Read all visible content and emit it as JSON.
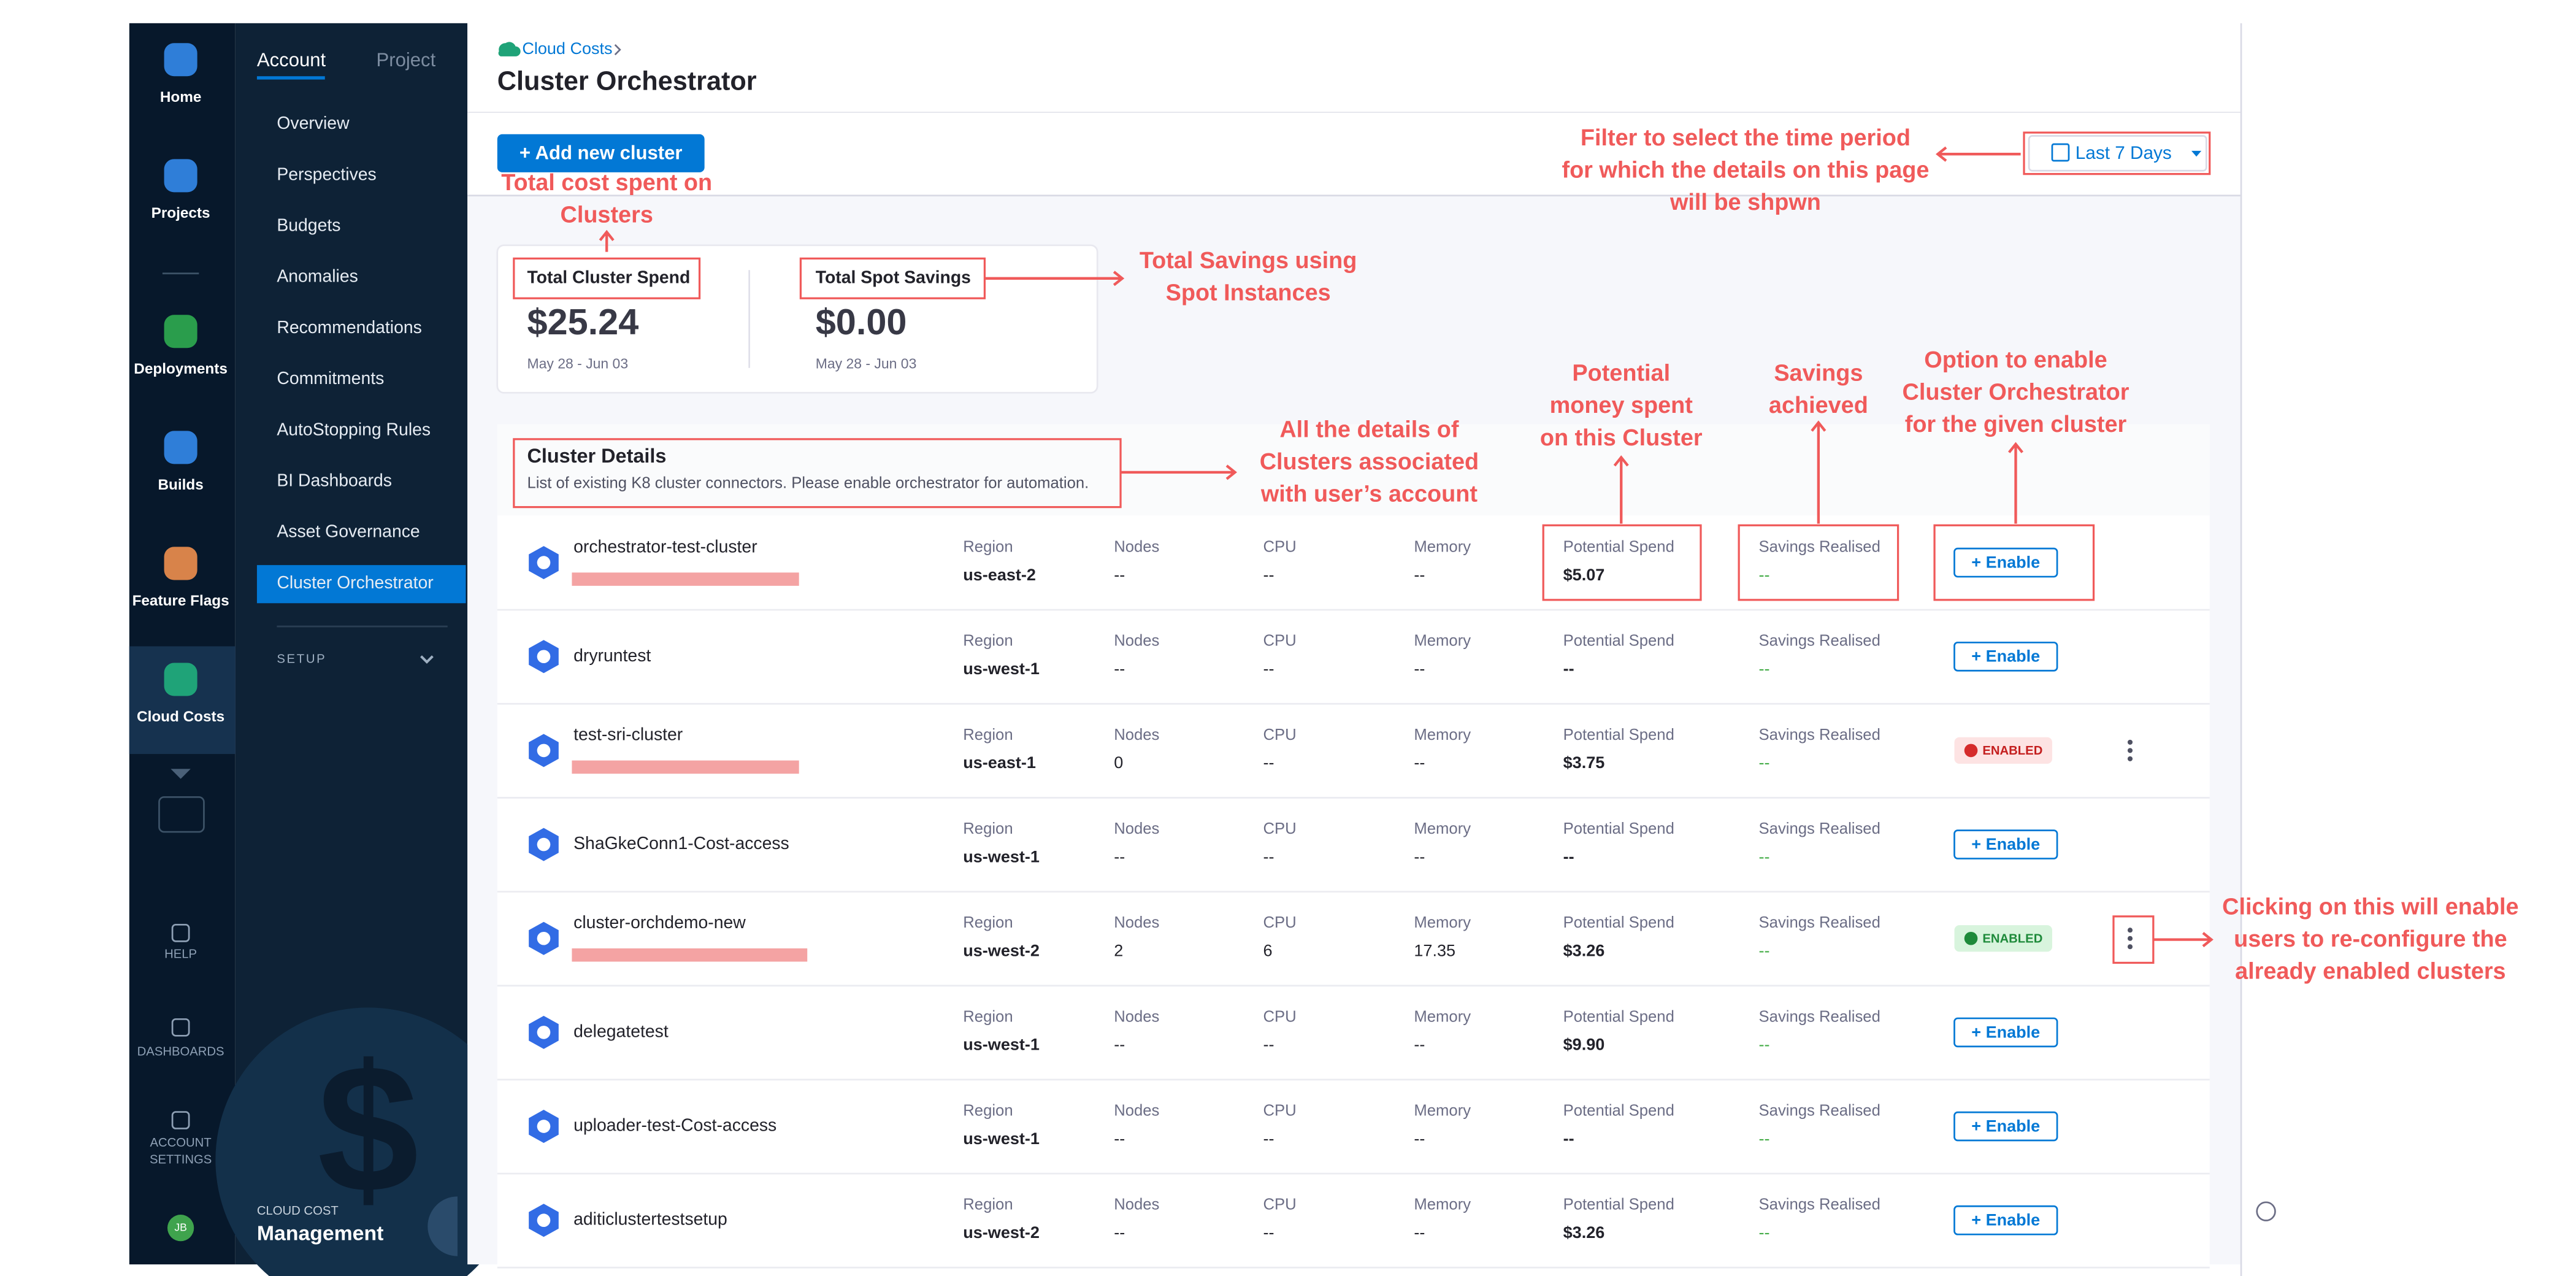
{
  "nav": {
    "items": [
      "Home",
      "Projects",
      "Deployments",
      "Builds",
      "Feature Flags",
      "Cloud Costs"
    ],
    "bottom": [
      [
        "HELP"
      ],
      [
        "DASHBOARDS"
      ],
      [
        "ACCOUNT",
        "SETTINGS"
      ]
    ],
    "avatar": "JB"
  },
  "subnav": {
    "tabs": [
      "Account",
      "Project"
    ],
    "items": [
      "Overview",
      "Perspectives",
      "Budgets",
      "Anomalies",
      "Recommendations",
      "Commitments",
      "AutoStopping Rules",
      "BI Dashboards",
      "Asset Governance",
      "Cluster Orchestrator"
    ],
    "setup": "SETUP",
    "footer_small": "CLOUD COST",
    "footer_big": "Management"
  },
  "header": {
    "breadcrumb": "Cloud Costs",
    "title": "Cluster Orchestrator",
    "add_button": "+ Add new cluster",
    "filter": "Last 7 Days"
  },
  "summary": [
    {
      "label": "Total Cluster Spend",
      "value": "$25.24",
      "range": "May 28 - Jun 03"
    },
    {
      "label": "Total Spot Savings",
      "value": "$0.00",
      "range": "May 28 - Jun 03"
    }
  ],
  "details": {
    "title": "Cluster Details",
    "subtitle": "List of existing K8 cluster connectors. Please enable orchestrator for automation."
  },
  "columns": [
    "Region",
    "Nodes",
    "CPU",
    "Memory",
    "Potential Spend",
    "Savings Realised"
  ],
  "rows": [
    {
      "name": "orchestrator-test-cluster",
      "redacted": true,
      "region": "us-east-2",
      "nodes": "--",
      "cpu": "--",
      "memory": "--",
      "potential_spend": "$5.07",
      "savings": "--",
      "action": "+ Enable"
    },
    {
      "name": "dryruntest",
      "region": "us-west-1",
      "nodes": "--",
      "cpu": "--",
      "memory": "--",
      "potential_spend": "--",
      "savings": "--",
      "action": "+ Enable"
    },
    {
      "name": "test-sri-cluster",
      "redacted": true,
      "region": "us-east-1",
      "nodes": "0",
      "cpu": "--",
      "memory": "--",
      "potential_spend": "$3.75",
      "savings": "--",
      "action": "ENABLED",
      "badge": "warning",
      "menu": true
    },
    {
      "name": "ShaGkeConn1-Cost-access",
      "region": "us-west-1",
      "nodes": "--",
      "cpu": "--",
      "memory": "--",
      "potential_spend": "--",
      "savings": "--",
      "action": "+ Enable"
    },
    {
      "name": "cluster-orchdemo-new",
      "redacted": true,
      "region": "us-west-2",
      "nodes": "2",
      "cpu": "6",
      "memory": "17.35",
      "potential_spend": "$3.26",
      "savings": "--",
      "action": "ENABLED",
      "badge": "success",
      "menu": true
    },
    {
      "name": "delegatetest",
      "region": "us-west-1",
      "nodes": "--",
      "cpu": "--",
      "memory": "--",
      "potential_spend": "$9.90",
      "savings": "--",
      "action": "+ Enable"
    },
    {
      "name": "uploader-test-Cost-access",
      "region": "us-west-1",
      "nodes": "--",
      "cpu": "--",
      "memory": "--",
      "potential_spend": "--",
      "savings": "--",
      "action": "+ Enable"
    },
    {
      "name": "aditiclustertestsetup",
      "region": "us-west-2",
      "nodes": "--",
      "cpu": "--",
      "memory": "--",
      "potential_spend": "$3.26",
      "savings": "--",
      "action": "+ Enable"
    }
  ],
  "annotations": [
    [
      "Total cost spent on",
      "Clusters"
    ],
    [
      "Total Savings using",
      "Spot Instances"
    ],
    [
      "Filter to select the time period",
      "for which the details on this page",
      "will be shpwn"
    ],
    [
      "All the details of",
      "Clusters associated",
      "with user’s account"
    ],
    [
      "Potential",
      "money spent",
      "on this Cluster"
    ],
    [
      "Savings",
      "achieved"
    ],
    [
      "Option to enable",
      "Cluster Orchestrator",
      "for the given cluster"
    ],
    [
      "Clicking on this will enable",
      "users to re-configure the",
      "already enabled clusters"
    ]
  ]
}
